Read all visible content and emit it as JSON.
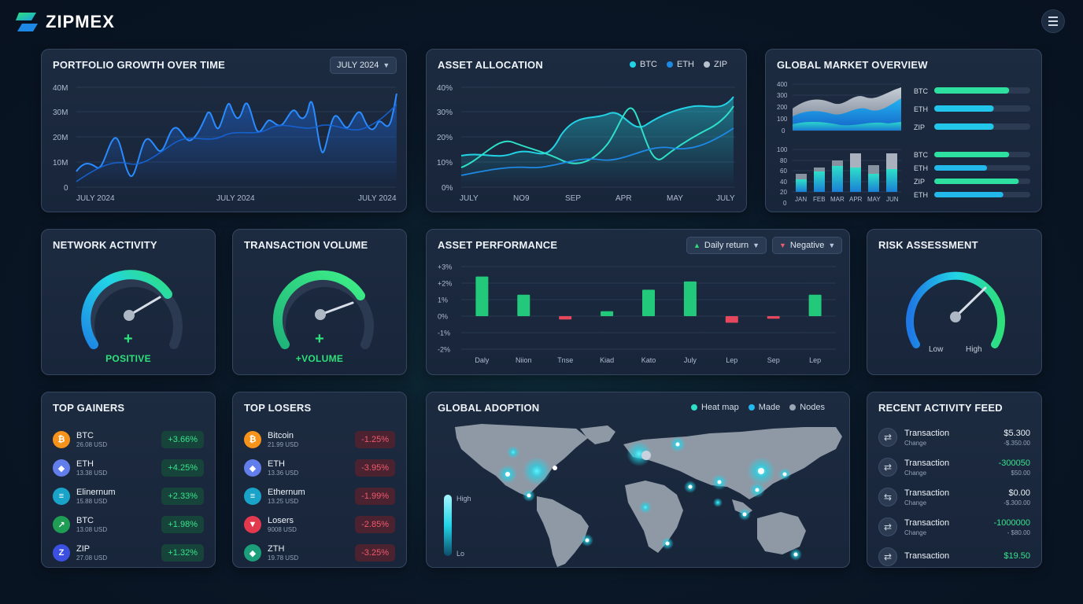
{
  "app": {
    "name": "ZIPMEX"
  },
  "colors": {
    "accent_cyan": "#22d3e6",
    "accent_blue": "#1e88e5",
    "accent_green": "#2ee07a",
    "negative_red": "#f05a6e"
  },
  "portfolio": {
    "title": "PORTFOLIO GROWTH OVER TIME",
    "filter": "JULY 2024",
    "y_ticks": [
      "40M",
      "30M",
      "20M",
      "10M",
      "0"
    ],
    "x_ticks": [
      "JULY 2024",
      "JULY 2024",
      "JULY 2024"
    ]
  },
  "allocation": {
    "title": "ASSET ALLOCATION",
    "legend": [
      {
        "label": "BTC",
        "color": "#22d3e6"
      },
      {
        "label": "ETH",
        "color": "#1e88e5"
      },
      {
        "label": "ZIP",
        "color": "#b8c2cf"
      }
    ],
    "y_ticks": [
      "40%",
      "30%",
      "20%",
      "10%",
      "0%"
    ],
    "x_ticks": [
      "JULY",
      "NO9",
      "SEP",
      "APR",
      "MAY",
      "JULY"
    ]
  },
  "market": {
    "title": "GLOBAL MARKET OVERVIEW",
    "area_y_ticks": [
      "400",
      "300",
      "200",
      "100",
      "0"
    ],
    "bar_y_ticks": [
      "100",
      "80",
      "60",
      "40",
      "20",
      "0"
    ],
    "months": [
      "JAN",
      "FEB",
      "MAR",
      "APR",
      "MAY",
      "JUN"
    ],
    "bars_top": [
      {
        "label": "BTC",
        "level": 0.78
      },
      {
        "label": "ETH",
        "level": 0.62
      },
      {
        "label": "ZIP",
        "level": 0.62
      }
    ],
    "bars_bottom": [
      {
        "label": "BTC",
        "level": 0.78
      },
      {
        "label": "ETH",
        "level": 0.55
      },
      {
        "label": "ZIP",
        "level": 0.88
      },
      {
        "label": "ETH",
        "level": 0.72
      }
    ]
  },
  "network": {
    "title": "NETWORK ACTIVITY",
    "sign": "+",
    "label": "POSITIVE"
  },
  "volume": {
    "title": "TRANSACTION VOLUME",
    "sign": "+",
    "label": "+VOLUME"
  },
  "performance": {
    "title": "ASSET PERFORMANCE",
    "filter1": "Daily return",
    "filter2": "Negative",
    "y_ticks": [
      "+3%",
      "+2%",
      "1%",
      "0%",
      "-1%",
      "-2%"
    ],
    "chart_data": {
      "type": "bar",
      "categories": [
        "Daly",
        "Niion",
        "Tnse",
        "Kiad",
        "Kato",
        "July",
        "Lep",
        "Sep",
        "Lep"
      ],
      "values": [
        2.4,
        1.3,
        -0.2,
        0.3,
        1.6,
        2.1,
        -0.4,
        -0.15,
        1.3
      ],
      "ylim": [
        -2,
        3
      ]
    }
  },
  "risk": {
    "title": "RISK ASSESSMENT",
    "low": "Low",
    "high": "High"
  },
  "gainers": {
    "title": "TOP GAINERS",
    "items": [
      {
        "name": "BTC",
        "sub": "26.08 USD",
        "change": "+3.66%",
        "icon": "bitcoin-icon",
        "glyph": "₿",
        "color": "#f7931a"
      },
      {
        "name": "ETH",
        "sub": "13.38 USD",
        "change": "+4.25%",
        "icon": "ethereum-icon",
        "glyph": "◆",
        "color": "#627eea"
      },
      {
        "name": "Elinernum",
        "sub": "15.88 USD",
        "change": "+2.33%",
        "icon": "stack-icon",
        "glyph": "≡",
        "color": "#1aa3c9"
      },
      {
        "name": "BTC",
        "sub": "13.08 USD",
        "change": "+1.98%",
        "icon": "arrow-up-right-icon",
        "glyph": "↗",
        "color": "#1f9d55"
      },
      {
        "name": "ZIP",
        "sub": "27.08 USD",
        "change": "+1.32%",
        "icon": "zipmex-icon",
        "glyph": "Z",
        "color": "#3b4fe0"
      }
    ]
  },
  "losers": {
    "title": "TOP LOSERS",
    "items": [
      {
        "name": "Bitcoin",
        "sub": "21.99 USD",
        "change": "-1.25%",
        "icon": "bitcoin-icon",
        "glyph": "₿",
        "color": "#f7931a"
      },
      {
        "name": "ETH",
        "sub": "13.36 USD",
        "change": "-3.95%",
        "icon": "ethereum-icon",
        "glyph": "◆",
        "color": "#627eea"
      },
      {
        "name": "Ethernum",
        "sub": "13.25 USD",
        "change": "-1.99%",
        "icon": "stack-icon",
        "glyph": "≡",
        "color": "#1aa3c9"
      },
      {
        "name": "Losers",
        "sub": "9008 USD",
        "change": "-2.85%",
        "icon": "triangle-down-icon",
        "glyph": "▼",
        "color": "#e2394f"
      },
      {
        "name": "ZTH",
        "sub": "19.78 USD",
        "change": "-3.25%",
        "icon": "ethereum-icon",
        "glyph": "◆",
        "color": "#1c9e7a"
      }
    ]
  },
  "adoption": {
    "title": "GLOBAL ADOPTION",
    "legend": [
      {
        "label": "Heat map",
        "color": "#2ee0c8"
      },
      {
        "label": "Made",
        "color": "#22b8f0"
      },
      {
        "label": "Nodes",
        "color": "#9aa6b4"
      }
    ],
    "scale_high": "High",
    "scale_low": "Lo"
  },
  "feed": {
    "title": "RECENT ACTIVITY FEED",
    "items": [
      {
        "name": "Transaction",
        "sub": "Change",
        "amount": "$5.300",
        "sub_amount": "-$.350.00",
        "green": false
      },
      {
        "name": "Transaction",
        "sub": "Change",
        "amount": "-300050",
        "sub_amount": "$50.00",
        "green": true
      },
      {
        "name": "Transaction",
        "sub": "Change",
        "amount": "$0.00",
        "sub_amount": "-$.300.00",
        "green": false
      },
      {
        "name": "Transaction",
        "sub": "Change",
        "amount": "-1000000",
        "sub_amount": "- $80.00",
        "green": true
      },
      {
        "name": "Transaction",
        "sub": "",
        "amount": "$19.50",
        "sub_amount": "",
        "green": true
      }
    ]
  }
}
